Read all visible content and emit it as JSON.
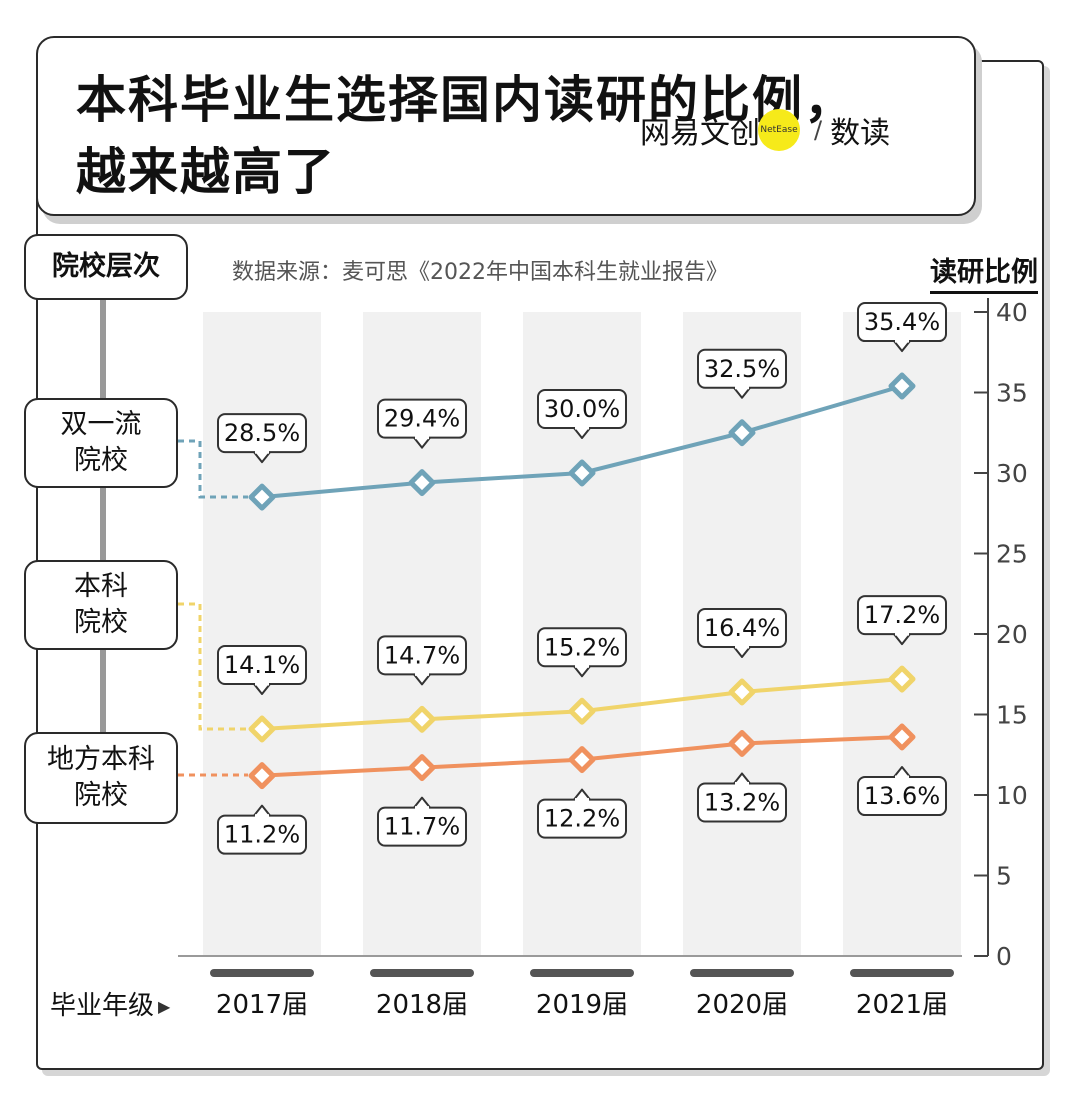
{
  "title": {
    "line1": "本科毕业生选择国内读研的比例，",
    "line2": "越来越高了"
  },
  "brand": {
    "name": "网易文创",
    "badge": "NetEase",
    "sub": "数读"
  },
  "source": "数据来源：麦可思《2022年中国本科生就业报告》",
  "tier_header": "院校层次",
  "x_axis_title": "毕业年级",
  "colors": {
    "双一流院校": "#6fa3b8",
    "本科院校": "#f0d46a",
    "地方本科院校": "#f0915e",
    "band": "#f1f1f1",
    "axis": "#444444"
  },
  "chart_data": {
    "type": "line",
    "title": "本科毕业生选择国内读研的比例，越来越高了",
    "xlabel": "毕业年级",
    "ylabel": "读研比例",
    "categories": [
      "2017届",
      "2018届",
      "2019届",
      "2020届",
      "2021届"
    ],
    "ylim": [
      0,
      40
    ],
    "yticks": [
      0,
      5,
      10,
      15,
      20,
      25,
      30,
      35,
      40
    ],
    "grid": false,
    "series": [
      {
        "name": "双一流院校",
        "label_lines": [
          "双一流",
          "院校"
        ],
        "values": [
          28.5,
          29.4,
          30.0,
          32.5,
          35.4
        ],
        "labels": [
          "28.5%",
          "29.4%",
          "30.0%",
          "32.5%",
          "35.4%"
        ],
        "label_side": "above"
      },
      {
        "name": "本科院校",
        "label_lines": [
          "本科",
          "院校"
        ],
        "values": [
          14.1,
          14.7,
          15.2,
          16.4,
          17.2
        ],
        "labels": [
          "14.1%",
          "14.7%",
          "15.2%",
          "16.4%",
          "17.2%"
        ],
        "label_side": "above"
      },
      {
        "name": "地方本科院校",
        "label_lines": [
          "地方本科",
          "院校"
        ],
        "values": [
          11.2,
          11.7,
          12.2,
          13.2,
          13.6
        ],
        "labels": [
          "11.2%",
          "11.7%",
          "12.2%",
          "13.2%",
          "13.6%"
        ],
        "label_side": "below"
      }
    ]
  }
}
